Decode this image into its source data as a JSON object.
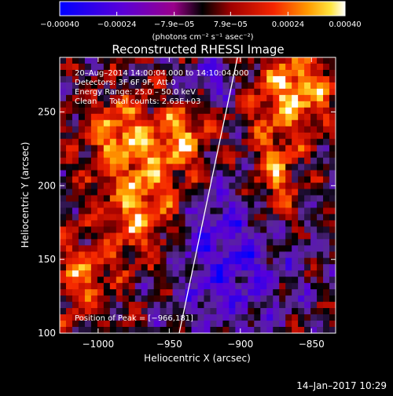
{
  "chart_data": {
    "type": "heatmap",
    "title": "Reconstructed RHESSI Image",
    "xlabel": "Heliocentric X (arcsec)",
    "ylabel": "Heliocentric Y (arcsec)",
    "xlim": [
      -1027,
      -833
    ],
    "ylim": [
      100,
      287
    ],
    "x_ticks": [
      -1000,
      -950,
      -900,
      -850
    ],
    "x_tick_labels": [
      "−1000",
      "−950",
      "−900",
      "−850"
    ],
    "y_ticks": [
      100,
      150,
      200,
      250
    ],
    "y_tick_labels": [
      "100",
      "150",
      "200",
      "250"
    ],
    "colorbar": {
      "range": [
        -0.0004,
        0.0004
      ],
      "ticks": [
        -0.0004,
        -0.00024,
        -7.9e-05,
        7.9e-05,
        0.00024,
        0.0004
      ],
      "tick_labels": [
        "−0.00040",
        "−0.00024",
        "−7.9e−05",
        "7.9e−05",
        "0.00024",
        "0.00040"
      ],
      "unit_label": "(photons cm⁻² s⁻¹ asec⁻²)"
    },
    "annotations": [
      "20–Aug–2014 14:00:04.000 to 14:10:04.000",
      "Detectors: 3F 6F 9F, Att 0",
      "Energy Range: 25.0 – 50.0 keV",
      "Clean     Total counts: 2.63E+03"
    ],
    "peak_label": "Position of Peak = [−966,181]",
    "limb_line": {
      "x": [
        -943,
        -902
      ],
      "y": [
        100,
        287
      ]
    },
    "grid": false,
    "legend": "none"
  },
  "footer": {
    "date": "14–Jan–2017 10:29"
  }
}
